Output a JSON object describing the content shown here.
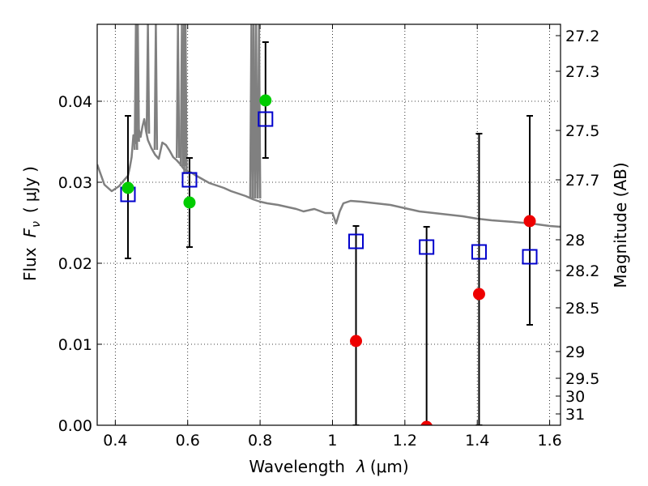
{
  "chart_data": {
    "type": "scatter",
    "xlabel": "Wavelength",
    "xlabel_symbol": "λ",
    "xlabel_unit": "(μm)",
    "ylabel": "Flux",
    "ylabel_symbol": "F",
    "ylabel_symbol_sub": "ν",
    "ylabel_unit_open": "(",
    "ylabel_unit": "μJy",
    "ylabel_unit_close": ")",
    "y2label": "Magnitude (AB)",
    "xlim": [
      0.35,
      1.63
    ],
    "ylim": [
      0.0,
      0.0495
    ],
    "grid": true,
    "grid_style": "dotted",
    "x_ticks": [
      0.4,
      0.6,
      0.8,
      1.0,
      1.2,
      1.4,
      1.6
    ],
    "x_tick_labels": [
      "0.4",
      "0.6",
      "0.8",
      "1",
      "1.2",
      "1.4",
      "1.6"
    ],
    "y_ticks": [
      0.0,
      0.01,
      0.02,
      0.03,
      0.04
    ],
    "y_tick_labels": [
      "0.00",
      "0.01",
      "0.02",
      "0.03",
      "0.04"
    ],
    "y2_ticks": [
      {
        "label": "27.2",
        "flux": 0.0481
      },
      {
        "label": "27.3",
        "flux": 0.0437
      },
      {
        "label": "27.5",
        "flux": 0.0364
      },
      {
        "label": "27.7",
        "flux": 0.0303
      },
      {
        "label": "28",
        "flux": 0.0229
      },
      {
        "label": "28.2",
        "flux": 0.0191
      },
      {
        "label": "28.5",
        "flux": 0.0145
      },
      {
        "label": "29",
        "flux": 0.0091
      },
      {
        "label": "29.5",
        "flux": 0.0058
      },
      {
        "label": "30",
        "flux": 0.0036
      },
      {
        "label": "31",
        "flux": 0.0014
      }
    ],
    "series": [
      {
        "kind": "line",
        "color": "#808080",
        "x": [
          0.35,
          0.37,
          0.39,
          0.41,
          0.425,
          0.435,
          0.44,
          0.445,
          0.45,
          0.455,
          0.46,
          0.465,
          0.47,
          0.475,
          0.48,
          0.485,
          0.49,
          0.5,
          0.51,
          0.52,
          0.53,
          0.54,
          0.55,
          0.56,
          0.57,
          0.58,
          0.59,
          0.6,
          0.61,
          0.62,
          0.64,
          0.66,
          0.68,
          0.7,
          0.72,
          0.74,
          0.76,
          0.78,
          0.8,
          0.82,
          0.85,
          0.88,
          0.9,
          0.92,
          0.95,
          0.98,
          1.0,
          1.01,
          1.02,
          1.03,
          1.05,
          1.08,
          1.12,
          1.16,
          1.2,
          1.24,
          1.3,
          1.36,
          1.4,
          1.44,
          1.5,
          1.55,
          1.6,
          1.63
        ],
        "y": [
          0.0322,
          0.0297,
          0.0289,
          0.0295,
          0.0303,
          0.0308,
          0.0318,
          0.0331,
          0.0358,
          0.0348,
          0.0352,
          0.0365,
          0.0356,
          0.0369,
          0.0378,
          0.0363,
          0.0352,
          0.0342,
          0.0334,
          0.0329,
          0.0349,
          0.0346,
          0.0339,
          0.0331,
          0.0327,
          0.0322,
          0.0316,
          0.0313,
          0.0312,
          0.0309,
          0.0304,
          0.0299,
          0.0296,
          0.0293,
          0.0289,
          0.0286,
          0.0283,
          0.0279,
          0.0276,
          0.0274,
          0.0272,
          0.0269,
          0.0267,
          0.0264,
          0.0267,
          0.0262,
          0.0262,
          0.0249,
          0.0264,
          0.0274,
          0.0277,
          0.0276,
          0.0274,
          0.0272,
          0.0268,
          0.0264,
          0.0261,
          0.0258,
          0.0255,
          0.0253,
          0.0251,
          0.0249,
          0.0246,
          0.0245
        ]
      },
      {
        "kind": "line-spikes",
        "color": "#808080",
        "x": [
          0.457,
          0.462,
          0.49,
          0.512,
          0.573,
          0.584,
          0.59,
          0.594,
          0.776,
          0.782,
          0.789,
          0.797
        ],
        "y_base": [
          0.034,
          0.035,
          0.036,
          0.034,
          0.033,
          0.032,
          0.032,
          0.031,
          0.028,
          0.028,
          0.028,
          0.028
        ],
        "y_top": [
          0.0495,
          0.0495,
          0.0495,
          0.0495,
          0.0495,
          0.0495,
          0.0495,
          0.0495,
          0.0495,
          0.0495,
          0.0495,
          0.0495
        ]
      },
      {
        "kind": "errorbar",
        "color": "#000000",
        "x": [
          0.435,
          0.605,
          0.815,
          1.065,
          1.26,
          1.405,
          1.545
        ],
        "low": [
          0.0206,
          0.022,
          0.033,
          0.0,
          0.0,
          0.0,
          0.0124
        ],
        "high": [
          0.0382,
          0.033,
          0.0473,
          0.0246,
          0.0245,
          0.036,
          0.0382
        ]
      },
      {
        "kind": "marker",
        "marker": "square-open",
        "color": "#0000cc",
        "x": [
          0.435,
          0.605,
          0.815,
          1.065,
          1.26,
          1.405,
          1.545
        ],
        "y": [
          0.0285,
          0.0303,
          0.0378,
          0.0227,
          0.022,
          0.0214,
          0.0208
        ]
      },
      {
        "kind": "marker",
        "marker": "circle",
        "color": "#00cc00",
        "x": [
          0.435,
          0.605,
          0.815
        ],
        "y": [
          0.0293,
          0.0275,
          0.0401
        ]
      },
      {
        "kind": "marker",
        "marker": "circle",
        "color": "#ee0000",
        "x": [
          1.065,
          1.26,
          1.405,
          1.545
        ],
        "y": [
          0.0104,
          -0.0002,
          0.0162,
          0.0252
        ]
      }
    ]
  }
}
